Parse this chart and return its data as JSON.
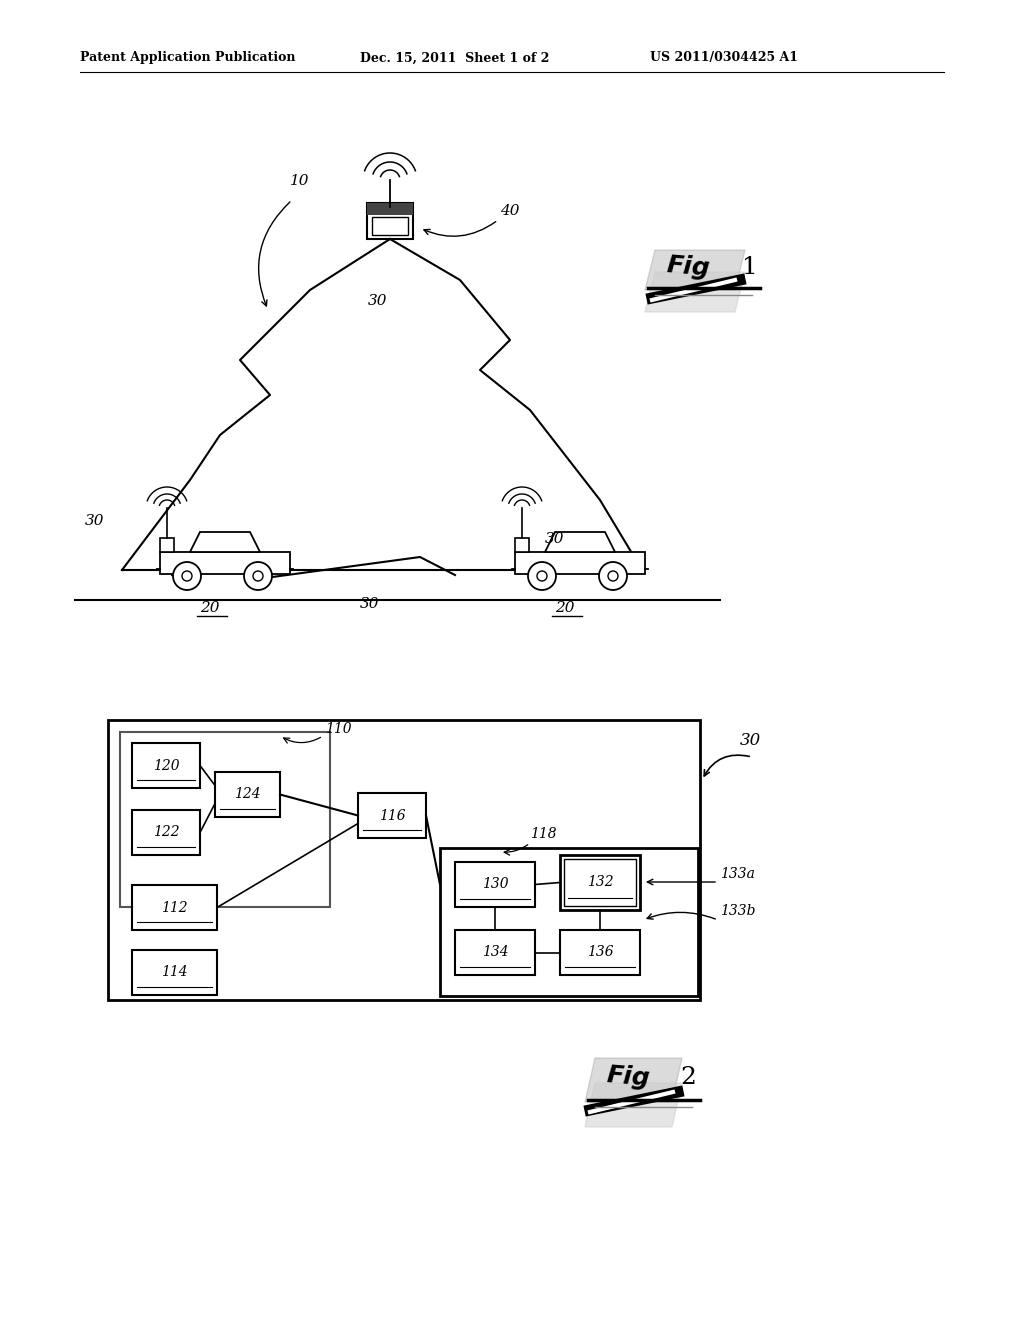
{
  "bg_color": "#ffffff",
  "header_left": "Patent Application Publication",
  "header_mid": "Dec. 15, 2011  Sheet 1 of 2",
  "header_right": "US 2011/0304425 A1",
  "label_10": "10",
  "label_20": "20",
  "label_30": "30",
  "label_40": "40",
  "label_110": "110",
  "label_112": "112",
  "label_114": "114",
  "label_116": "116",
  "label_118": "118",
  "label_120": "120",
  "label_122": "122",
  "label_124": "124",
  "label_130": "130",
  "label_132": "132",
  "label_133a": "133a",
  "label_133b": "133b",
  "label_134": "134",
  "label_136": "136"
}
